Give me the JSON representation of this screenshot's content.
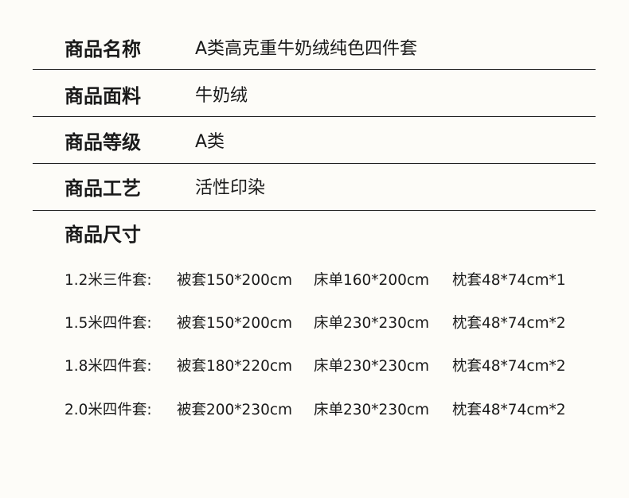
{
  "specs": [
    {
      "label": "商品名称",
      "value": "A类高克重牛奶绒纯色四件套"
    },
    {
      "label": "商品面料",
      "value": "牛奶绒"
    },
    {
      "label": "商品等级",
      "value": "A类"
    },
    {
      "label": "商品工艺",
      "value": "活性印染"
    }
  ],
  "sizes_label": "商品尺寸",
  "sizes": [
    {
      "name": "1.2米三件套:",
      "duvet": "被套150*200cm",
      "sheet": "床单160*200cm",
      "pillow": "枕套48*74cm*1"
    },
    {
      "name": "1.5米四件套:",
      "duvet": "被套150*200cm",
      "sheet": "床单230*230cm",
      "pillow": "枕套48*74cm*2"
    },
    {
      "name": "1.8米四件套:",
      "duvet": "被套180*220cm",
      "sheet": "床单230*230cm",
      "pillow": "枕套48*74cm*2"
    },
    {
      "name": "2.0米四件套:",
      "duvet": "被套200*230cm",
      "sheet": "床单230*230cm",
      "pillow": "枕套48*74cm*2"
    }
  ]
}
